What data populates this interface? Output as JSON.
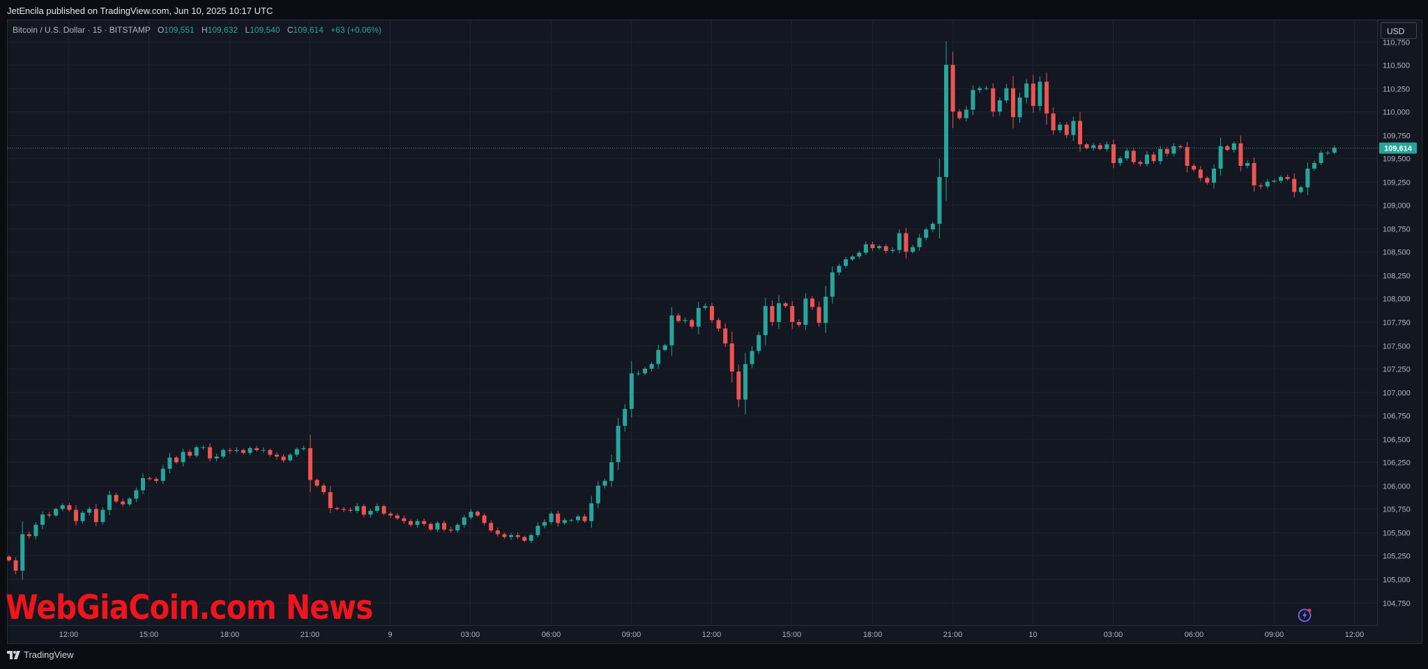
{
  "publisher": "JetEncila published on TradingView.com, Jun 10, 2025 10:17 UTC",
  "legend": {
    "symbol": "Bitcoin / U.S. Dollar · 15 · BITSTAMP",
    "o_label": "O",
    "o_value": "109,551",
    "h_label": "H",
    "h_value": "109,632",
    "l_label": "L",
    "l_value": "109,540",
    "c_label": "C",
    "c_value": "109,614",
    "change": "+63 (+0.06%)"
  },
  "currency": "USD",
  "last_price_label": "109,614",
  "watermark": "WebGiaCoin.com News",
  "footer": {
    "brand": "TradingView"
  },
  "icons": {
    "bolt": "lightning-bolt-icon",
    "logo": "tradingview-logo-icon"
  },
  "colors": {
    "up": "#26a69a",
    "down": "#ef5350",
    "background": "#131722",
    "grid": "#1e222d",
    "watermark": "#f2141a"
  },
  "chart_data": {
    "type": "candlestick",
    "ylim": [
      104600,
      111000
    ],
    "y_ticks": [
      104750,
      105000,
      105250,
      105500,
      105750,
      106000,
      106250,
      106500,
      106750,
      107000,
      107250,
      107500,
      107750,
      108000,
      108250,
      108500,
      108750,
      109000,
      109250,
      109500,
      109750,
      110000,
      110250,
      110500,
      110750
    ],
    "y_tick_labels": [
      "104,750",
      "105,000",
      "105,250",
      "105,500",
      "105,750",
      "106,000",
      "106,250",
      "106,500",
      "106,750",
      "107,000",
      "107,250",
      "107,500",
      "107,750",
      "108,000",
      "108,250",
      "108,500",
      "108,750",
      "109,000",
      "109,250",
      "109,500",
      "109,750",
      "110,000",
      "110,250",
      "110,500",
      "110,750"
    ],
    "x_ticks": [
      "12:00",
      "15:00",
      "18:00",
      "21:00",
      "9",
      "03:00",
      "06:00",
      "09:00",
      "12:00",
      "15:00",
      "18:00",
      "21:00",
      "10",
      "03:00",
      "06:00",
      "09:00",
      "12:00"
    ],
    "last_price": 109614,
    "closes": [
      105200,
      105090,
      105480,
      105460,
      105580,
      105690,
      105680,
      105750,
      105790,
      105740,
      105620,
      105710,
      105750,
      105610,
      105740,
      105900,
      105830,
      105800,
      105860,
      105950,
      106080,
      106070,
      106050,
      106180,
      106300,
      106250,
      106360,
      106320,
      106410,
      106410,
      106290,
      106310,
      106380,
      106370,
      106380,
      106350,
      106400,
      106380,
      106380,
      106330,
      106310,
      106270,
      106330,
      106390,
      106400,
      106060,
      106000,
      105930,
      105760,
      105750,
      105740,
      105730,
      105780,
      105690,
      105730,
      105780,
      105700,
      105680,
      105650,
      105620,
      105580,
      105620,
      105590,
      105530,
      105600,
      105530,
      105520,
      105580,
      105660,
      105720,
      105680,
      105600,
      105520,
      105480,
      105450,
      105470,
      105450,
      105410,
      105470,
      105570,
      105610,
      105700,
      105600,
      105630,
      105630,
      105670,
      105620,
      105810,
      106000,
      106050,
      106250,
      106640,
      106820,
      107200,
      107200,
      107250,
      107300,
      107450,
      107500,
      107820,
      107760,
      107770,
      107700,
      107900,
      107920,
      107770,
      107680,
      107520,
      107220,
      106920,
      107300,
      107440,
      107610,
      107920,
      107750,
      107950,
      107920,
      107750,
      107720,
      108000,
      107910,
      107740,
      108020,
      108280,
      108350,
      108420,
      108450,
      108490,
      108580,
      108540,
      108560,
      108510,
      108520,
      108700,
      108500,
      108550,
      108650,
      108740,
      108800,
      109300,
      110500,
      110000,
      109930,
      110020,
      110230,
      110250,
      110250,
      110000,
      110120,
      110250,
      109940,
      110150,
      110300,
      110060,
      110320,
      109980,
      109800,
      109860,
      109750,
      109900,
      109650,
      109610,
      109640,
      109600,
      109650,
      109450,
      109500,
      109580,
      109460,
      109440,
      109540,
      109470,
      109600,
      109550,
      109630,
      109620,
      109420,
      109380,
      109290,
      109240,
      109390,
      109630,
      109590,
      109660,
      109420,
      109450,
      109210,
      109200,
      109250,
      109260,
      109300,
      109280,
      109140,
      109190,
      109390,
      109450,
      109560,
      109560,
      109614
    ]
  }
}
